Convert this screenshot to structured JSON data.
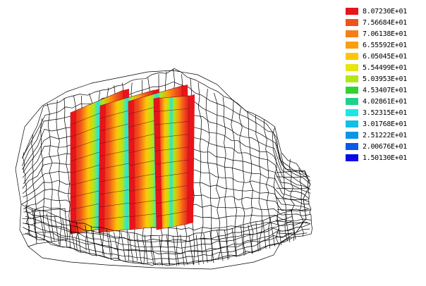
{
  "figure": {
    "mesh_color": "#000000",
    "panel_count": 4
  },
  "legend": {
    "items": [
      {
        "label": "8.07230E+01",
        "color": "#e8141a"
      },
      {
        "label": "7.56684E+01",
        "color": "#f0521c"
      },
      {
        "label": "7.06138E+01",
        "color": "#f57f16"
      },
      {
        "label": "6.55592E+01",
        "color": "#fa9e0e"
      },
      {
        "label": "6.05045E+01",
        "color": "#ffc60a"
      },
      {
        "label": "5.54499E+01",
        "color": "#e6e60f"
      },
      {
        "label": "5.03953E+01",
        "color": "#b4e614"
      },
      {
        "label": "4.53407E+01",
        "color": "#32d232"
      },
      {
        "label": "4.02861E+01",
        "color": "#1ed28c"
      },
      {
        "label": "3.52315E+01",
        "color": "#1ee6e6"
      },
      {
        "label": "3.01768E+01",
        "color": "#14bee6"
      },
      {
        "label": "2.51222E+01",
        "color": "#0a96e6"
      },
      {
        "label": "2.00676E+01",
        "color": "#0a5ae6"
      },
      {
        "label": "1.50130E+01",
        "color": "#0a0ae6"
      }
    ]
  }
}
